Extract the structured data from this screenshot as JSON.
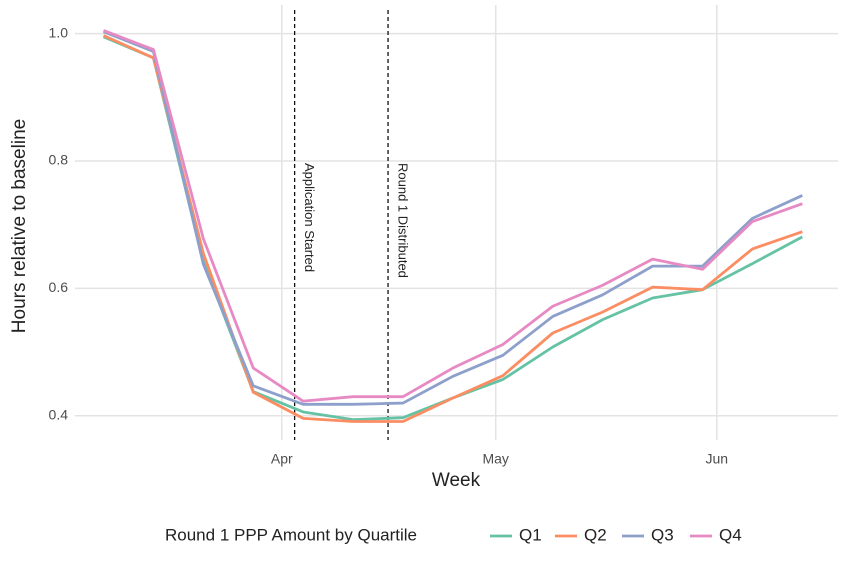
{
  "chart_data": {
    "type": "line",
    "xlabel": "Week",
    "ylabel": "Hours relative to baseline",
    "x": [
      -25,
      -18,
      -11,
      -4,
      3,
      10,
      17,
      24,
      31,
      38,
      45,
      52,
      59,
      66,
      73
    ],
    "xlim": [
      -29,
      78
    ],
    "xticks": [
      {
        "value": 0,
        "label": "Apr"
      },
      {
        "value": 30,
        "label": "May"
      },
      {
        "value": 61,
        "label": "Jun"
      }
    ],
    "ylim": [
      0.362,
      1.045
    ],
    "yticks": [
      0.4,
      0.6,
      0.8,
      {
        "value": 1.0,
        "label": "1.0"
      }
    ],
    "grid": true,
    "legend_title": "Round 1 PPP Amount by Quartile",
    "legend_position": "bottom",
    "series": [
      {
        "name": "Q1",
        "color": "#66c2a5",
        "values": [
          0.995,
          0.962,
          0.642,
          0.438,
          0.406,
          0.394,
          0.397,
          0.428,
          0.457,
          0.508,
          0.551,
          0.585,
          0.598,
          0.639,
          0.681
        ]
      },
      {
        "name": "Q2",
        "color": "#fc8d62",
        "values": [
          0.997,
          0.962,
          0.655,
          0.437,
          0.396,
          0.391,
          0.391,
          0.428,
          0.463,
          0.53,
          0.563,
          0.602,
          0.598,
          0.662,
          0.689
        ]
      },
      {
        "name": "Q3",
        "color": "#8da0cb",
        "values": [
          1.003,
          0.972,
          0.638,
          0.447,
          0.418,
          0.418,
          0.42,
          0.462,
          0.495,
          0.556,
          0.59,
          0.635,
          0.635,
          0.71,
          0.746
        ]
      },
      {
        "name": "Q4",
        "color": "#e78ac3",
        "values": [
          1.005,
          0.975,
          0.678,
          0.475,
          0.423,
          0.43,
          0.43,
          0.475,
          0.512,
          0.572,
          0.605,
          0.646,
          0.63,
          0.705,
          0.733
        ]
      }
    ],
    "annotations": [
      {
        "x": 1.8,
        "text": "Application Started"
      },
      {
        "x": 14.9,
        "text": "Round 1 Distributed"
      }
    ]
  }
}
